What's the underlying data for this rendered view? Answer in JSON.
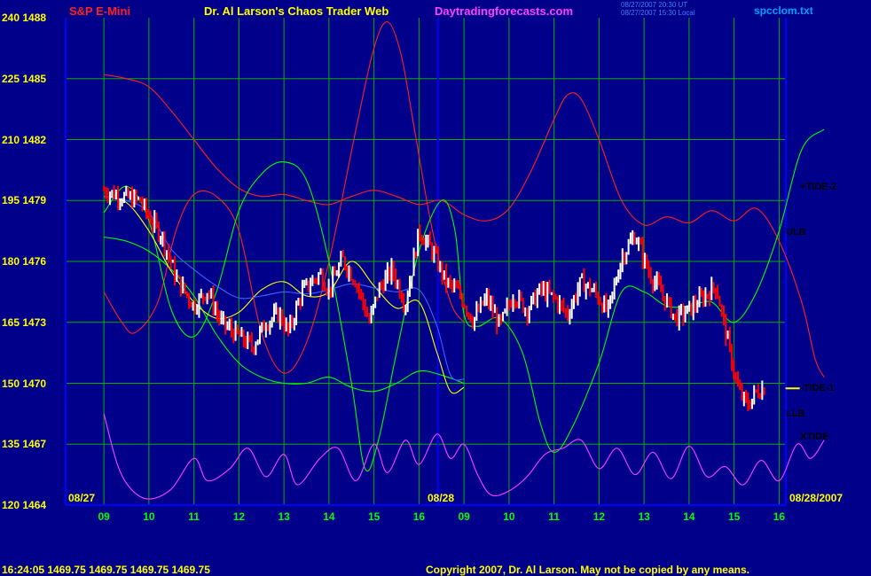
{
  "header": {
    "instrument": "S&P E-Mini",
    "site": "Dr. Al Larson's Chaos Trader Web",
    "url": "Daytradingforecasts.com",
    "timestamp_line1": "08/27/2007 20:30 UT",
    "timestamp_line2": "08/27/2007 15:30 Local",
    "filename": "spcclom.txt"
  },
  "footer": {
    "quote": "16:24:05  1469.75  1469.75  1469.75  1469.75",
    "copyright": "Copyright 2007, Dr. Al Larson. May not be copied by any means."
  },
  "dates": {
    "start": "08/27",
    "mid": "08/28",
    "end": "08/28/2007"
  },
  "right_labels": [
    {
      "text": "+TIDE-2",
      "color": "#00ff00"
    },
    {
      "text": "ULB",
      "color": "#ff2020"
    },
    {
      "text": "-TIDE-1",
      "color": "#ff2020"
    },
    {
      "text": "LLB",
      "color": "#00ff00"
    },
    {
      "text": "XTIDE",
      "color": "#ff40ff"
    }
  ],
  "chart_data": {
    "type": "line",
    "y_ticks_left": [
      "240",
      "225",
      "210",
      "195",
      "180",
      "165",
      "150",
      "135",
      "120"
    ],
    "y_ticks_price": [
      "1488",
      "1485",
      "1482",
      "1479",
      "1476",
      "1473",
      "1470",
      "1467",
      "1464"
    ],
    "ylim_price": [
      1464,
      1488
    ],
    "x_ticks": [
      "09",
      "10",
      "11",
      "12",
      "13",
      "14",
      "15",
      "16",
      "09",
      "10",
      "11",
      "12",
      "13",
      "14",
      "15",
      "16"
    ],
    "grid": true,
    "colors": {
      "background": "#00008a",
      "grid": "#00b000",
      "axis": "#0000ff",
      "up_bar": "#ffffff",
      "down_bar": "#ff0000"
    },
    "series": [
      {
        "name": "ULB",
        "color": "#ff2020",
        "points": [
          [
            0,
            1485.2
          ],
          [
            0.5,
            1485.0
          ],
          [
            1,
            1484.6
          ],
          [
            1.5,
            1483.4
          ],
          [
            2,
            1482.0
          ],
          [
            2.5,
            1480.6
          ],
          [
            3,
            1479.6
          ],
          [
            3.5,
            1479.2
          ],
          [
            4,
            1479.3
          ],
          [
            4.5,
            1479.0
          ],
          [
            5,
            1478.8
          ],
          [
            5.5,
            1479.2
          ],
          [
            6,
            1479.5
          ],
          [
            6.5,
            1479.2
          ],
          [
            7,
            1478.8
          ],
          [
            7.5,
            1479.0
          ],
          [
            8,
            1478.3
          ],
          [
            8.5,
            1478.0
          ],
          [
            9,
            1478.6
          ],
          [
            9.5,
            1480.5
          ],
          [
            10,
            1483.0
          ],
          [
            10.3,
            1484.2
          ],
          [
            10.6,
            1484.0
          ],
          [
            11,
            1482.0
          ],
          [
            11.5,
            1479.0
          ],
          [
            12,
            1477.8
          ],
          [
            12.5,
            1478.2
          ],
          [
            13,
            1477.9
          ],
          [
            13.5,
            1478.5
          ],
          [
            14,
            1478.0
          ],
          [
            14.5,
            1478.6
          ],
          [
            15,
            1477.0
          ],
          [
            15.5,
            1474.0
          ],
          [
            15.8,
            1471.2
          ],
          [
            16,
            1470.3
          ]
        ]
      },
      {
        "name": "-TIDE-1",
        "color": "#ff2020",
        "points": [
          [
            0,
            1474.5
          ],
          [
            0.4,
            1473.0
          ],
          [
            0.7,
            1472.5
          ],
          [
            1.2,
            1474.0
          ],
          [
            1.6,
            1477.5
          ],
          [
            2.0,
            1479.3
          ],
          [
            2.5,
            1479.2
          ],
          [
            3,
            1477.5
          ],
          [
            3.5,
            1472.5
          ],
          [
            4,
            1470.5
          ],
          [
            4.5,
            1472.0
          ],
          [
            5,
            1476.0
          ],
          [
            5.6,
            1482.5
          ],
          [
            6.0,
            1486.5
          ],
          [
            6.3,
            1487.8
          ],
          [
            6.6,
            1486.2
          ],
          [
            6.9,
            1482.5
          ],
          [
            7.3,
            1477.5
          ],
          [
            7.7,
            1474.0
          ],
          [
            8,
            1473.0
          ]
        ]
      },
      {
        "name": "+TIDE-2",
        "color": "#00ff00",
        "points": [
          [
            0,
            1477.2
          ],
          [
            0.5,
            1477.0
          ],
          [
            1,
            1476.5
          ],
          [
            1.5,
            1475.6
          ],
          [
            2,
            1474.3
          ],
          [
            2.5,
            1472.4
          ],
          [
            3,
            1471.0
          ],
          [
            3.5,
            1470.3
          ],
          [
            4,
            1470.0
          ],
          [
            4.5,
            1470.0
          ],
          [
            5,
            1470.3
          ],
          [
            5.5,
            1469.8
          ],
          [
            6,
            1469.6
          ],
          [
            6.5,
            1470.0
          ],
          [
            7,
            1470.6
          ],
          [
            7.5,
            1470.4
          ],
          [
            8,
            1470.0
          ]
        ]
      },
      {
        "name": "LLB",
        "color": "#00ff00",
        "points": [
          [
            0,
            1478.4
          ],
          [
            0.5,
            1479.7
          ],
          [
            1,
            1478.0
          ],
          [
            1.5,
            1473.6
          ],
          [
            2,
            1472.3
          ],
          [
            2.5,
            1474.5
          ],
          [
            3,
            1478.5
          ],
          [
            3.5,
            1480.3
          ],
          [
            4,
            1480.9
          ],
          [
            4.5,
            1480.0
          ],
          [
            5,
            1476.0
          ],
          [
            5.5,
            1470.0
          ],
          [
            5.8,
            1465.8
          ],
          [
            6.1,
            1467.2
          ],
          [
            6.5,
            1471.5
          ],
          [
            7,
            1476.5
          ],
          [
            7.5,
            1479.0
          ],
          [
            7.8,
            1477.5
          ],
          [
            8,
            1473.4
          ],
          [
            8.3,
            1472.8
          ],
          [
            8.8,
            1473.2
          ],
          [
            9.3,
            1471.5
          ],
          [
            9.7,
            1468.0
          ],
          [
            10.0,
            1466.6
          ],
          [
            10.4,
            1467.8
          ],
          [
            11,
            1471.0
          ],
          [
            11.5,
            1474.5
          ],
          [
            12,
            1474.5
          ],
          [
            12.5,
            1473.8
          ],
          [
            13,
            1473.8
          ],
          [
            13.5,
            1474.0
          ],
          [
            14,
            1473.0
          ],
          [
            14.5,
            1474.5
          ],
          [
            15,
            1477.5
          ],
          [
            15.5,
            1481.5
          ],
          [
            16,
            1482.5
          ]
        ]
      },
      {
        "name": "XTIDE",
        "color": "#ff40ff",
        "points": [
          [
            0,
            1468.5
          ],
          [
            0.3,
            1466.0
          ],
          [
            0.6,
            1464.8
          ],
          [
            1,
            1464.3
          ],
          [
            1.5,
            1464.8
          ],
          [
            2,
            1466.3
          ],
          [
            2.3,
            1465.2
          ],
          [
            2.8,
            1465.8
          ],
          [
            3.2,
            1466.8
          ],
          [
            3.6,
            1465.4
          ],
          [
            4,
            1466.5
          ],
          [
            4.3,
            1465.0
          ],
          [
            4.8,
            1466.3
          ],
          [
            5.2,
            1466.8
          ],
          [
            5.6,
            1465.2
          ],
          [
            6,
            1467.0
          ],
          [
            6.3,
            1465.6
          ],
          [
            6.7,
            1467.2
          ],
          [
            7,
            1466.0
          ],
          [
            7.4,
            1467.5
          ],
          [
            7.7,
            1466.3
          ],
          [
            8,
            1467.0
          ],
          [
            8.3,
            1465.5
          ],
          [
            8.6,
            1464.5
          ],
          [
            9,
            1464.7
          ],
          [
            9.4,
            1465.4
          ],
          [
            9.8,
            1466.5
          ],
          [
            10.2,
            1466.8
          ],
          [
            10.6,
            1467.2
          ],
          [
            11,
            1465.8
          ],
          [
            11.4,
            1466.8
          ],
          [
            11.8,
            1465.5
          ],
          [
            12.2,
            1466.6
          ],
          [
            12.6,
            1465.3
          ],
          [
            13,
            1466.9
          ],
          [
            13.4,
            1465.4
          ],
          [
            13.8,
            1465.9
          ],
          [
            14.2,
            1465.0
          ],
          [
            14.6,
            1466.2
          ],
          [
            15,
            1465.2
          ],
          [
            15.4,
            1467.0
          ],
          [
            15.7,
            1466.3
          ],
          [
            16,
            1467.2
          ]
        ]
      },
      {
        "name": "avg-yellow",
        "color": "#ffff00",
        "points": [
          [
            0,
            1479.2
          ],
          [
            0.5,
            1478.9
          ],
          [
            1,
            1477.5
          ],
          [
            1.5,
            1475.5
          ],
          [
            2,
            1474.0
          ],
          [
            2.5,
            1473.2
          ],
          [
            3,
            1473.5
          ],
          [
            3.5,
            1474.6
          ],
          [
            4,
            1475.0
          ],
          [
            4.5,
            1474.3
          ],
          [
            5,
            1474.5
          ],
          [
            5.5,
            1476.0
          ],
          [
            6,
            1474.8
          ],
          [
            6.5,
            1473.7
          ],
          [
            7,
            1474.0
          ],
          [
            7.4,
            1471.5
          ],
          [
            7.7,
            1469.6
          ],
          [
            8,
            1469.8
          ]
        ]
      },
      {
        "name": "avg-blue",
        "color": "#4060ff",
        "points": [
          [
            0,
            1479.2
          ],
          [
            0.5,
            1479.0
          ],
          [
            1,
            1478.4
          ],
          [
            1.5,
            1476.6
          ],
          [
            2,
            1475.6
          ],
          [
            2.5,
            1474.8
          ],
          [
            3,
            1474.2
          ],
          [
            3.5,
            1474.3
          ],
          [
            4,
            1474.5
          ],
          [
            4.5,
            1474.4
          ],
          [
            5,
            1474.6
          ],
          [
            5.5,
            1474.9
          ],
          [
            6,
            1474.7
          ],
          [
            6.5,
            1474.5
          ],
          [
            7,
            1474.6
          ],
          [
            7.4,
            1472.8
          ],
          [
            7.7,
            1470.4
          ],
          [
            8,
            1470.2
          ]
        ]
      }
    ],
    "price_path": [
      [
        0,
        1479.5
      ],
      [
        0.4,
        1479.2
      ],
      [
        0.8,
        1479.0
      ],
      [
        1.0,
        1478.2
      ],
      [
        1.3,
        1477.2
      ],
      [
        1.6,
        1475.2
      ],
      [
        2.0,
        1473.8
      ],
      [
        2.3,
        1474.6
      ],
      [
        2.6,
        1473.0
      ],
      [
        3.0,
        1472.3
      ],
      [
        3.3,
        1471.8
      ],
      [
        3.6,
        1473.0
      ],
      [
        3.9,
        1473.4
      ],
      [
        4.1,
        1472.5
      ],
      [
        4.4,
        1474.5
      ],
      [
        4.8,
        1475.4
      ],
      [
        5.0,
        1474.6
      ],
      [
        5.3,
        1476.1
      ],
      [
        5.6,
        1475.0
      ],
      [
        5.9,
        1473.0
      ],
      [
        6.1,
        1474.6
      ],
      [
        6.4,
        1475.6
      ],
      [
        6.7,
        1473.9
      ],
      [
        7.0,
        1477.5
      ],
      [
        7.3,
        1476.5
      ],
      [
        7.6,
        1475.0
      ],
      [
        7.9,
        1474.4
      ],
      [
        8.2,
        1473.1
      ],
      [
        8.5,
        1474.2
      ],
      [
        8.8,
        1472.8
      ],
      [
        9.1,
        1474.4
      ],
      [
        9.4,
        1473.6
      ],
      [
        9.7,
        1474.6
      ],
      [
        10.0,
        1474.2
      ],
      [
        10.3,
        1473.4
      ],
      [
        10.6,
        1475.0
      ],
      [
        10.9,
        1474.5
      ],
      [
        11.2,
        1473.5
      ],
      [
        11.5,
        1476.2
      ],
      [
        11.8,
        1477.3
      ],
      [
        12.1,
        1475.5
      ],
      [
        12.4,
        1474.4
      ],
      [
        12.7,
        1473.2
      ],
      [
        13.0,
        1473.6
      ],
      [
        13.3,
        1474.2
      ],
      [
        13.6,
        1474.8
      ],
      [
        13.9,
        1471.6
      ],
      [
        14.1,
        1469.6
      ],
      [
        14.3,
        1468.9
      ],
      [
        14.5,
        1469.6
      ],
      [
        14.7,
        1469.8
      ]
    ],
    "forecast_marker": {
      "x": 15.3,
      "y": 1469.75,
      "color": "#ffff00"
    }
  }
}
